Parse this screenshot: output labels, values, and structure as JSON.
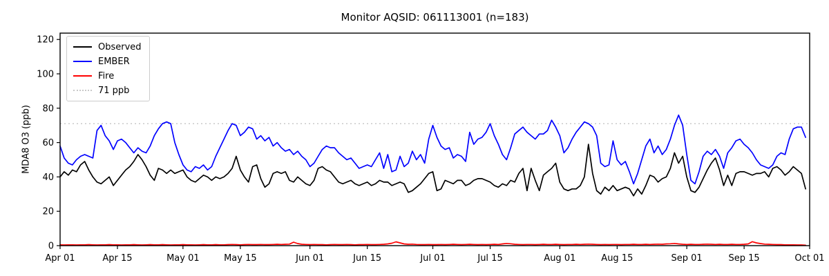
{
  "figure": {
    "title": "Monitor AQSID: 061113001 (n=183)",
    "ylabel": "MDA8 O3 (ppb)"
  },
  "legend": {
    "items": [
      {
        "label": "Observed",
        "color": "#000000",
        "style": "solid"
      },
      {
        "label": "EMBER",
        "color": "#0000ff",
        "style": "solid"
      },
      {
        "label": "Fire",
        "color": "#ff0000",
        "style": "solid"
      },
      {
        "label": "71 ppb",
        "color": "#c8c8c8",
        "style": "dotted"
      }
    ]
  },
  "chart_data": {
    "type": "line",
    "title": "Monitor AQSID: 061113001 (n=183)",
    "xlabel": "",
    "ylabel": "MDA8 O3 (ppb)",
    "n_days": 183,
    "x_start": "Apr 01",
    "x_end": "Oct 01",
    "x_tick_labels": [
      "Apr 01",
      "Apr 15",
      "May 01",
      "May 15",
      "Jun 01",
      "Jun 15",
      "Jul 01",
      "Jul 15",
      "Aug 01",
      "Aug 15",
      "Sep 01",
      "Sep 15",
      "Oct 01"
    ],
    "x_tick_days": [
      0,
      14,
      30,
      44,
      61,
      75,
      91,
      105,
      122,
      136,
      153,
      167,
      183
    ],
    "y_ticks": [
      0,
      20,
      40,
      60,
      80,
      100,
      120
    ],
    "ylim": [
      0,
      123.7
    ],
    "grid": false,
    "legend_position": "upper left",
    "threshold": {
      "value": 71,
      "label": "71 ppb",
      "color": "#c8c8c8",
      "style": "dotted"
    },
    "series": [
      {
        "name": "Observed",
        "color": "#000000",
        "values": [
          40,
          43,
          41,
          44,
          43,
          47,
          49,
          44,
          40,
          37,
          36,
          38,
          40,
          35,
          38,
          41,
          44,
          46,
          49,
          53,
          50,
          46,
          41,
          38,
          45,
          44,
          42,
          44,
          42,
          43,
          44,
          40,
          38,
          37,
          39,
          41,
          40,
          38,
          40,
          39,
          40,
          42,
          45,
          52,
          44,
          40,
          37,
          46,
          47,
          39,
          34,
          36,
          42,
          43,
          42,
          43,
          38,
          37,
          40,
          38,
          36,
          35,
          38,
          45,
          46,
          44,
          43,
          40,
          37,
          36,
          37,
          38,
          36,
          35,
          36,
          37,
          35,
          36,
          38,
          37,
          37,
          35,
          36,
          37,
          36,
          31,
          32,
          34,
          36,
          39,
          42,
          43,
          32,
          33,
          38,
          37,
          36,
          38,
          38,
          35,
          36,
          38,
          39,
          39,
          38,
          37,
          35,
          34,
          36,
          35,
          38,
          37,
          42,
          45,
          32,
          45,
          38,
          32,
          41,
          43,
          45,
          48,
          37,
          33,
          32,
          33,
          33,
          35,
          40,
          59,
          42,
          32,
          30,
          34,
          32,
          35,
          32,
          33,
          34,
          33,
          29,
          33,
          30,
          35,
          41,
          40,
          37,
          39,
          40,
          45,
          54,
          48,
          52,
          40,
          32,
          31,
          34,
          39,
          44,
          48,
          51,
          44,
          35,
          41,
          35,
          42,
          43,
          43,
          42,
          41,
          42,
          42,
          43,
          40,
          45,
          46,
          44,
          41,
          43,
          46,
          44,
          42,
          33
        ]
      },
      {
        "name": "EMBER",
        "color": "#0000ff",
        "values": [
          58,
          51,
          48,
          47,
          50,
          52,
          53,
          52,
          51,
          67,
          70,
          64,
          61,
          56,
          61,
          62,
          60,
          57,
          54,
          57,
          55,
          54,
          58,
          64,
          68,
          71,
          72,
          71,
          60,
          53,
          47,
          44,
          43,
          46,
          45,
          47,
          44,
          46,
          52,
          57,
          62,
          67,
          71,
          70,
          64,
          66,
          69,
          68,
          62,
          64,
          61,
          63,
          58,
          60,
          57,
          55,
          56,
          53,
          55,
          52,
          50,
          46,
          48,
          52,
          56,
          58,
          57,
          57,
          54,
          52,
          50,
          51,
          48,
          45,
          46,
          47,
          46,
          50,
          54,
          45,
          53,
          43,
          44,
          52,
          46,
          48,
          55,
          50,
          53,
          48,
          62,
          70,
          63,
          58,
          56,
          57,
          51,
          53,
          52,
          49,
          66,
          59,
          62,
          63,
          66,
          71,
          64,
          59,
          53,
          50,
          57,
          65,
          67,
          69,
          66,
          64,
          62,
          65,
          65,
          67,
          73,
          69,
          64,
          54,
          57,
          62,
          66,
          69,
          72,
          71,
          69,
          64,
          48,
          46,
          47,
          61,
          50,
          47,
          49,
          43,
          36,
          42,
          50,
          58,
          62,
          54,
          58,
          53,
          56,
          62,
          70,
          76,
          70,
          53,
          38,
          36,
          43,
          52,
          55,
          53,
          56,
          52,
          45,
          54,
          57,
          61,
          62,
          59,
          57,
          54,
          50,
          47,
          46,
          45,
          47,
          52,
          54,
          53,
          62,
          68,
          69,
          69,
          63
        ]
      },
      {
        "name": "Fire",
        "color": "#ff0000",
        "values": [
          0.5,
          0.4,
          0.5,
          0.5,
          0.4,
          0.5,
          0.5,
          0.6,
          0.5,
          0.4,
          0.5,
          0.5,
          0.6,
          0.5,
          0.5,
          0.4,
          0.5,
          0.5,
          0.6,
          0.5,
          0.4,
          0.5,
          0.6,
          0.5,
          0.5,
          0.6,
          0.5,
          0.4,
          0.5,
          0.5,
          0.6,
          0.5,
          0.5,
          0.4,
          0.5,
          0.6,
          0.5,
          0.5,
          0.6,
          0.5,
          0.5,
          0.6,
          0.7,
          0.6,
          0.5,
          0.6,
          0.7,
          0.6,
          0.6,
          0.7,
          0.6,
          0.6,
          0.7,
          0.8,
          0.7,
          0.8,
          0.9,
          2.0,
          1.2,
          0.8,
          0.7,
          0.6,
          0.7,
          0.6,
          0.6,
          0.5,
          0.6,
          0.7,
          0.6,
          0.6,
          0.7,
          0.6,
          0.5,
          0.6,
          0.6,
          0.7,
          0.6,
          0.6,
          0.7,
          0.8,
          1.0,
          1.4,
          2.2,
          1.6,
          1.0,
          0.8,
          0.9,
          0.7,
          0.6,
          0.6,
          0.7,
          0.6,
          0.6,
          0.7,
          0.6,
          0.7,
          0.8,
          0.7,
          0.6,
          0.7,
          0.8,
          0.7,
          0.6,
          0.7,
          0.6,
          0.7,
          0.8,
          0.7,
          1.0,
          1.3,
          1.1,
          0.8,
          0.7,
          0.6,
          0.7,
          0.7,
          0.6,
          0.7,
          0.8,
          0.7,
          0.7,
          0.8,
          0.7,
          0.6,
          0.7,
          0.7,
          0.8,
          0.7,
          0.8,
          0.9,
          0.8,
          0.7,
          0.6,
          0.7,
          0.6,
          0.7,
          0.7,
          0.6,
          0.7,
          0.7,
          0.8,
          0.7,
          0.7,
          0.8,
          0.7,
          0.8,
          0.9,
          0.8,
          1.0,
          1.1,
          1.3,
          1.0,
          0.8,
          0.7,
          0.8,
          0.7,
          0.7,
          0.8,
          0.9,
          0.8,
          0.7,
          0.8,
          0.7,
          0.7,
          0.8,
          0.7,
          0.7,
          0.8,
          1.0,
          2.3,
          1.6,
          1.2,
          0.9,
          0.8,
          0.7,
          0.6,
          0.6,
          0.5,
          0.5,
          0.5,
          0.4,
          0.4,
          0.3
        ]
      }
    ]
  }
}
